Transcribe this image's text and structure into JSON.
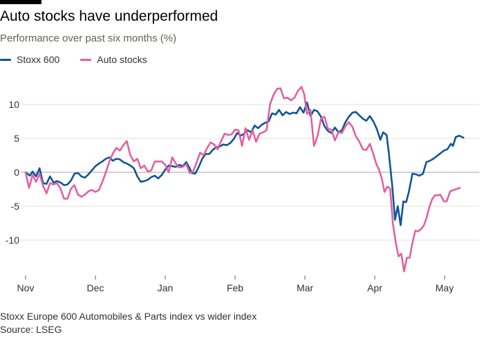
{
  "header": {
    "title": "Auto stocks have underperformed",
    "subtitle": "Performance over past six months (%)"
  },
  "footer": {
    "note": "Stoxx Europe 600 Automobiles & Parts index vs wider index",
    "source": "Source: LSEG"
  },
  "chart_data": {
    "type": "line",
    "title": "Auto stocks have underperformed",
    "subtitle": "Performance over past six months (%)",
    "xlabel": "",
    "ylabel": "",
    "xlim": [
      0,
      6.27
    ],
    "ylim": [
      -15.5,
      12.5
    ],
    "grid": true,
    "legend_position": "top-left",
    "x_ticks": [
      {
        "x": 0,
        "label": "Nov"
      },
      {
        "x": 1,
        "label": "Dec"
      },
      {
        "x": 2,
        "label": "Jan"
      },
      {
        "x": 3,
        "label": "Feb"
      },
      {
        "x": 4,
        "label": "Mar"
      },
      {
        "x": 5,
        "label": "Apr"
      },
      {
        "x": 6,
        "label": "May"
      }
    ],
    "y_ticks": [
      10,
      5,
      0,
      -5,
      -10
    ],
    "series": [
      {
        "name": "Stoxx 600",
        "color": "#0f5499",
        "points": [
          [
            0.0,
            0
          ],
          [
            0.06,
            -0.5
          ],
          [
            0.1,
            0.1
          ],
          [
            0.15,
            -0.6
          ],
          [
            0.2,
            0.6
          ],
          [
            0.25,
            -1.6
          ],
          [
            0.3,
            -1.7
          ],
          [
            0.35,
            -0.6
          ],
          [
            0.4,
            -1.5
          ],
          [
            0.45,
            -1.3
          ],
          [
            0.5,
            -1.5
          ],
          [
            0.55,
            -1.9
          ],
          [
            0.6,
            -1.8
          ],
          [
            0.65,
            -1.2
          ],
          [
            0.7,
            -0.2
          ],
          [
            0.75,
            -0.1
          ],
          [
            0.8,
            -0.6
          ],
          [
            0.85,
            -0.8
          ],
          [
            0.9,
            -0.3
          ],
          [
            0.95,
            0.3
          ],
          [
            1.0,
            0.9
          ],
          [
            1.05,
            1.3
          ],
          [
            1.1,
            1.6
          ],
          [
            1.15,
            2.0
          ],
          [
            1.2,
            2.2
          ],
          [
            1.25,
            1.7
          ],
          [
            1.3,
            2.0
          ],
          [
            1.35,
            1.9
          ],
          [
            1.4,
            1.5
          ],
          [
            1.45,
            1.3
          ],
          [
            1.5,
            1.0
          ],
          [
            1.55,
            0.6
          ],
          [
            1.6,
            -0.6
          ],
          [
            1.65,
            -1.4
          ],
          [
            1.7,
            -1.3
          ],
          [
            1.75,
            -1.1
          ],
          [
            1.8,
            -0.7
          ],
          [
            1.85,
            -0.5
          ],
          [
            1.9,
            -0.9
          ],
          [
            1.95,
            -0.4
          ],
          [
            2.0,
            0.4
          ],
          [
            2.05,
            1.0
          ],
          [
            2.1,
            0.9
          ],
          [
            2.15,
            0.8
          ],
          [
            2.2,
            1.1
          ],
          [
            2.25,
            0.9
          ],
          [
            2.3,
            1.5
          ],
          [
            2.35,
            0.6
          ],
          [
            2.38,
            -0.1
          ],
          [
            2.43,
            -0.2
          ],
          [
            2.48,
            0.8
          ],
          [
            2.53,
            2.0
          ],
          [
            2.58,
            2.7
          ],
          [
            2.63,
            2.7
          ],
          [
            2.68,
            3.3
          ],
          [
            2.73,
            3.7
          ],
          [
            2.78,
            3.8
          ],
          [
            2.83,
            4.1
          ],
          [
            2.88,
            4.0
          ],
          [
            2.93,
            4.3
          ],
          [
            2.98,
            4.9
          ],
          [
            3.03,
            5.8
          ],
          [
            3.08,
            5.4
          ],
          [
            3.13,
            5.7
          ],
          [
            3.18,
            6.2
          ],
          [
            3.23,
            5.9
          ],
          [
            3.28,
            6.9
          ],
          [
            3.33,
            6.5
          ],
          [
            3.38,
            7.0
          ],
          [
            3.43,
            7.3
          ],
          [
            3.48,
            7.5
          ],
          [
            3.53,
            8.7
          ],
          [
            3.58,
            8.5
          ],
          [
            3.63,
            9.2
          ],
          [
            3.68,
            8.4
          ],
          [
            3.73,
            8.9
          ],
          [
            3.78,
            8.6
          ],
          [
            3.83,
            8.8
          ],
          [
            3.88,
            8.7
          ],
          [
            3.93,
            9.6
          ],
          [
            3.98,
            8.8
          ],
          [
            4.03,
            10.3
          ],
          [
            4.08,
            8.3
          ],
          [
            4.13,
            9.2
          ],
          [
            4.18,
            9.0
          ],
          [
            4.23,
            8.2
          ],
          [
            4.28,
            6.8
          ],
          [
            4.33,
            6.1
          ],
          [
            4.38,
            5.8
          ],
          [
            4.43,
            6.6
          ],
          [
            4.48,
            5.9
          ],
          [
            4.53,
            6.2
          ],
          [
            4.58,
            7.4
          ],
          [
            4.63,
            8.2
          ],
          [
            4.68,
            8.8
          ],
          [
            4.73,
            8.9
          ],
          [
            4.78,
            8.4
          ],
          [
            4.83,
            7.9
          ],
          [
            4.88,
            7.6
          ],
          [
            4.93,
            8.3
          ],
          [
            4.98,
            7.5
          ],
          [
            5.03,
            6.4
          ],
          [
            5.08,
            4.8
          ],
          [
            5.12,
            5.9
          ],
          [
            5.17,
            5.5
          ],
          [
            5.2,
            3.0
          ],
          [
            5.25,
            -2.0
          ],
          [
            5.29,
            -7.0
          ],
          [
            5.33,
            -5.0
          ],
          [
            5.37,
            -7.8
          ],
          [
            5.41,
            -4.3
          ],
          [
            5.45,
            -4.4
          ],
          [
            5.49,
            -2.8
          ],
          [
            5.54,
            -0.2
          ],
          [
            5.59,
            -0.3
          ],
          [
            5.64,
            -0.5
          ],
          [
            5.69,
            -0.2
          ],
          [
            5.74,
            1.5
          ],
          [
            5.79,
            1.7
          ],
          [
            5.84,
            2.0
          ],
          [
            5.89,
            2.4
          ],
          [
            5.94,
            2.8
          ],
          [
            5.99,
            3.2
          ],
          [
            6.04,
            3.4
          ],
          [
            6.09,
            4.2
          ],
          [
            6.12,
            3.9
          ],
          [
            6.16,
            5.2
          ],
          [
            6.21,
            5.4
          ],
          [
            6.27,
            5.1
          ]
        ]
      },
      {
        "name": "Auto stocks",
        "color": "#e3609f",
        "points": [
          [
            0.0,
            0
          ],
          [
            0.05,
            -2.3
          ],
          [
            0.1,
            -0.4
          ],
          [
            0.15,
            -1.4
          ],
          [
            0.2,
            -0.2
          ],
          [
            0.25,
            -2.0
          ],
          [
            0.3,
            -3.1
          ],
          [
            0.35,
            -1.6
          ],
          [
            0.4,
            -1.8
          ],
          [
            0.45,
            -1.6
          ],
          [
            0.5,
            -2.4
          ],
          [
            0.55,
            -3.9
          ],
          [
            0.6,
            -3.9
          ],
          [
            0.65,
            -2.4
          ],
          [
            0.7,
            -1.9
          ],
          [
            0.75,
            -3.3
          ],
          [
            0.8,
            -3.6
          ],
          [
            0.85,
            -3.3
          ],
          [
            0.9,
            -2.8
          ],
          [
            0.95,
            -2.6
          ],
          [
            1.0,
            -2.9
          ],
          [
            1.05,
            -2.6
          ],
          [
            1.1,
            -1.4
          ],
          [
            1.15,
            0.0
          ],
          [
            1.2,
            1.6
          ],
          [
            1.25,
            2.8
          ],
          [
            1.3,
            3.6
          ],
          [
            1.35,
            3.2
          ],
          [
            1.4,
            4.0
          ],
          [
            1.45,
            4.6
          ],
          [
            1.5,
            2.5
          ],
          [
            1.55,
            1.6
          ],
          [
            1.6,
            2.0
          ],
          [
            1.65,
            0.6
          ],
          [
            1.7,
            1.0
          ],
          [
            1.75,
            0.1
          ],
          [
            1.8,
            0.3
          ],
          [
            1.85,
            1.6
          ],
          [
            1.9,
            1.6
          ],
          [
            1.95,
            1.6
          ],
          [
            2.0,
            1.1
          ],
          [
            2.05,
            0.0
          ],
          [
            2.1,
            2.2
          ],
          [
            2.15,
            1.3
          ],
          [
            2.2,
            0.7
          ],
          [
            2.25,
            0.8
          ],
          [
            2.3,
            1.2
          ],
          [
            2.35,
            -0.1
          ],
          [
            2.4,
            0.1
          ],
          [
            2.45,
            1.5
          ],
          [
            2.5,
            2.9
          ],
          [
            2.55,
            2.5
          ],
          [
            2.6,
            3.6
          ],
          [
            2.65,
            4.4
          ],
          [
            2.7,
            4.1
          ],
          [
            2.75,
            3.4
          ],
          [
            2.8,
            4.6
          ],
          [
            2.85,
            5.7
          ],
          [
            2.9,
            5.5
          ],
          [
            2.95,
            5.6
          ],
          [
            3.0,
            6.3
          ],
          [
            3.05,
            6.2
          ],
          [
            3.1,
            3.9
          ],
          [
            3.15,
            6.5
          ],
          [
            3.2,
            4.8
          ],
          [
            3.25,
            6.2
          ],
          [
            3.3,
            4.5
          ],
          [
            3.35,
            5.7
          ],
          [
            3.4,
            5.9
          ],
          [
            3.45,
            6.2
          ],
          [
            3.5,
            10.0
          ],
          [
            3.55,
            11.4
          ],
          [
            3.6,
            12.3
          ],
          [
            3.65,
            12.4
          ],
          [
            3.7,
            10.9
          ],
          [
            3.75,
            11.0
          ],
          [
            3.8,
            10.6
          ],
          [
            3.85,
            11.0
          ],
          [
            3.9,
            12.0
          ],
          [
            3.95,
            12.6
          ],
          [
            3.99,
            11.5
          ],
          [
            4.03,
            8.6
          ],
          [
            4.08,
            9.2
          ],
          [
            4.13,
            3.9
          ],
          [
            4.18,
            5.3
          ],
          [
            4.23,
            7.9
          ],
          [
            4.28,
            8.2
          ],
          [
            4.33,
            6.4
          ],
          [
            4.38,
            6.3
          ],
          [
            4.43,
            4.7
          ],
          [
            4.48,
            5.9
          ],
          [
            4.53,
            5.8
          ],
          [
            4.58,
            6.8
          ],
          [
            4.63,
            7.4
          ],
          [
            4.68,
            6.7
          ],
          [
            4.73,
            5.3
          ],
          [
            4.78,
            4.5
          ],
          [
            4.83,
            3.4
          ],
          [
            4.88,
            3.3
          ],
          [
            4.93,
            4.2
          ],
          [
            4.98,
            2.7
          ],
          [
            5.02,
            1.3
          ],
          [
            5.06,
            0.4
          ],
          [
            5.1,
            -0.9
          ],
          [
            5.14,
            -2.9
          ],
          [
            5.18,
            -2.1
          ],
          [
            5.22,
            -2.4
          ],
          [
            5.26,
            -7.6
          ],
          [
            5.3,
            -10.3
          ],
          [
            5.34,
            -12.4
          ],
          [
            5.38,
            -12.0
          ],
          [
            5.42,
            -14.6
          ],
          [
            5.46,
            -12.6
          ],
          [
            5.5,
            -12.6
          ],
          [
            5.54,
            -10.4
          ],
          [
            5.58,
            -8.6
          ],
          [
            5.62,
            -8.7
          ],
          [
            5.66,
            -8.4
          ],
          [
            5.7,
            -7.9
          ],
          [
            5.74,
            -6.8
          ],
          [
            5.78,
            -5.2
          ],
          [
            5.82,
            -4.0
          ],
          [
            5.86,
            -3.4
          ],
          [
            5.9,
            -3.4
          ],
          [
            5.94,
            -3.3
          ],
          [
            5.99,
            -4.3
          ],
          [
            6.03,
            -4.3
          ],
          [
            6.08,
            -2.8
          ],
          [
            6.16,
            -2.5
          ],
          [
            6.22,
            -2.3
          ]
        ]
      }
    ]
  }
}
